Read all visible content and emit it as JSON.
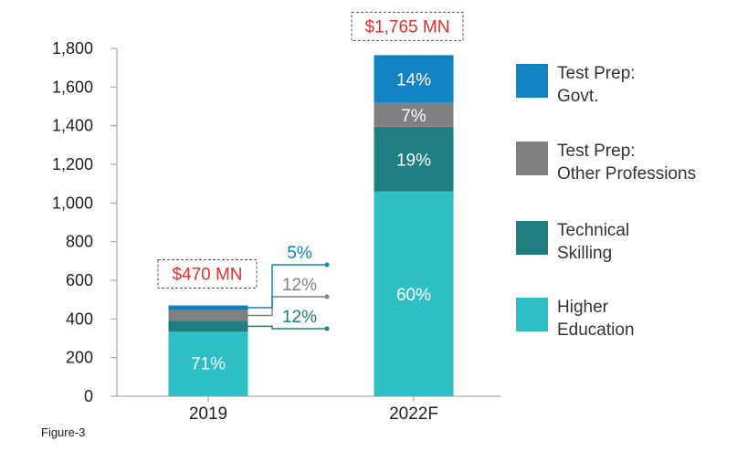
{
  "chart_data": {
    "type": "bar",
    "stacked": true,
    "categories": [
      "2019",
      "2022F"
    ],
    "ylim": [
      0,
      1800
    ],
    "y_ticks": [
      "0",
      "200",
      "400",
      "600",
      "800",
      "1,000",
      "1,200",
      "1,400",
      "1,600",
      "1,800"
    ],
    "totals": [
      470,
      1765
    ],
    "total_labels": [
      "$470 MN",
      "$1,765 MN"
    ],
    "series": [
      {
        "name": "Higher Education",
        "color": "#2fbfc6",
        "shares": [
          71,
          60
        ],
        "labels": [
          "71%",
          "60%"
        ]
      },
      {
        "name": "Technical Skilling",
        "color": "#1f7f80",
        "shares": [
          12,
          19
        ],
        "labels": [
          "12%",
          "19%"
        ]
      },
      {
        "name": "Test Prep: Other Professions",
        "color": "#808080",
        "shares": [
          12,
          7
        ],
        "labels": [
          "12%",
          "7%"
        ]
      },
      {
        "name": "Test Prep: Govt.",
        "color": "#1282c2",
        "shares": [
          5,
          14
        ],
        "labels": [
          "5%",
          "14%"
        ]
      }
    ],
    "legend": [
      {
        "line1": "Test Prep:",
        "line2": "Govt.",
        "color": "#1282c2"
      },
      {
        "line1": "Test Prep:",
        "line2": "Other Professions",
        "color": "#808080"
      },
      {
        "line1": "Technical",
        "line2": "Skilling",
        "color": "#1f7f80"
      },
      {
        "line1": "Higher",
        "line2": "Education",
        "color": "#2fbfc6"
      }
    ],
    "legend_position": "right",
    "grid": false
  },
  "caption": "Figure-3"
}
